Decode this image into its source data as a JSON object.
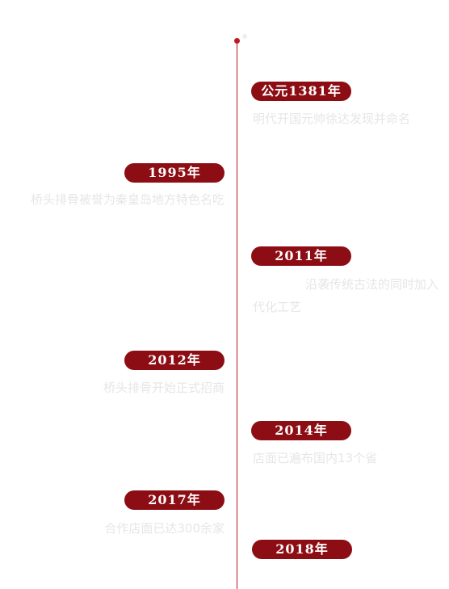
{
  "timeline": {
    "events": [
      {
        "year": "公元1381年",
        "text": "明代开国元帅徐达发现并命名",
        "text2": ""
      },
      {
        "year": "1995年",
        "text": "桥头排骨被誉为秦皇岛地方特色名吃",
        "text2": ""
      },
      {
        "year": "2011年",
        "text": "沿袭传统古法的同时加入",
        "text2": "代化工艺"
      },
      {
        "year": "2012年",
        "text": "桥头排骨开始正式招商",
        "text2": ""
      },
      {
        "year": "2014年",
        "text": "店面已遍布国内13个省",
        "text2": ""
      },
      {
        "year": "2017年",
        "text": "合作店面已达300余家",
        "text2": ""
      },
      {
        "year": "2018年",
        "text": "",
        "text2": ""
      }
    ]
  },
  "colors": {
    "accent": "#8d0d14",
    "line": "#b3121c",
    "description": "#e6e6e6"
  }
}
